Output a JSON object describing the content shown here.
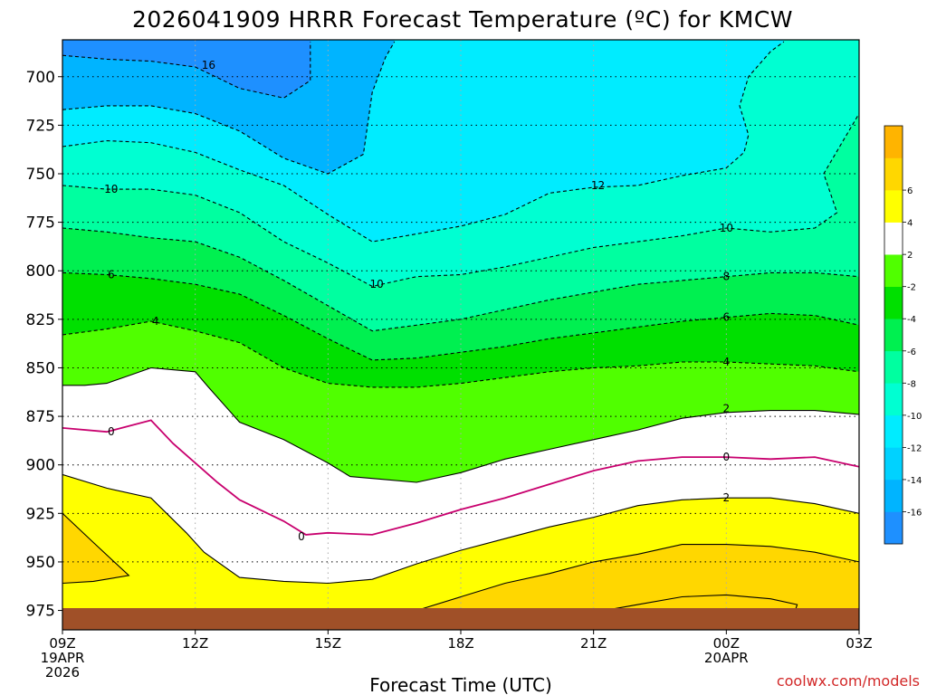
{
  "title": "2026041909 HRRR Forecast Temperature (ºC) for KMCW",
  "credit": "coolwx.com/models",
  "chart_data": {
    "type": "heatmap",
    "title": "2026041909 HRRR Forecast Temperature (ºC) for KMCW",
    "xlabel": "Forecast Time (UTC)",
    "ylabel": "",
    "x_hours": [
      0,
      18
    ],
    "y_range_hpa": [
      681,
      985
    ],
    "x_ticks": [
      {
        "h": 0,
        "label": "09Z",
        "sub1": "19APR",
        "sub2": "2026"
      },
      {
        "h": 3,
        "label": "12Z",
        "sub1": "",
        "sub2": ""
      },
      {
        "h": 6,
        "label": "15Z",
        "sub1": "",
        "sub2": ""
      },
      {
        "h": 9,
        "label": "18Z",
        "sub1": "",
        "sub2": ""
      },
      {
        "h": 12,
        "label": "21Z",
        "sub1": "",
        "sub2": ""
      },
      {
        "h": 15,
        "label": "00Z",
        "sub1": "20APR",
        "sub2": ""
      },
      {
        "h": 18,
        "label": "03Z",
        "sub1": "",
        "sub2": ""
      }
    ],
    "y_ticks": [
      700,
      725,
      750,
      775,
      800,
      825,
      850,
      875,
      900,
      925,
      950,
      975
    ],
    "grid": true,
    "colorbar": {
      "levels": [
        -18,
        -16,
        -14,
        -12,
        -10,
        -8,
        -6,
        -4,
        -2,
        2,
        4,
        6,
        8
      ],
      "colors": [
        "#1e90ff",
        "#00b4ff",
        "#00d2ff",
        "#00ecff",
        "#00ffd2",
        "#00ffa0",
        "#00f050",
        "#00e000",
        "#50ff00",
        "#ffffff",
        "#ffff00",
        "#ffd700",
        "#ffb400"
      ],
      "tick_labels": [
        "-16",
        "-14",
        "-12",
        "-10",
        "-8",
        "-6",
        "-4",
        "-2",
        "2",
        "4",
        "6"
      ]
    },
    "temperature_bands": [
      {
        "range": "< -16",
        "color": "#1e90ff"
      },
      {
        "range": "-16 to -14",
        "color": "#00b4ff"
      },
      {
        "range": "-14 to -12",
        "color": "#00ecff"
      },
      {
        "range": "-12 to -10",
        "color": "#00ffd2"
      },
      {
        "range": "-10 to -8",
        "color": "#00ffa0"
      },
      {
        "range": "-8 to -6",
        "color": "#00f050"
      },
      {
        "range": "-6 to -4",
        "color": "#00e000"
      },
      {
        "range": "-4 to -2",
        "color": "#50ff00"
      },
      {
        "range": "-2 to 2",
        "color": "#ffffff"
      },
      {
        "range": "2 to 4",
        "color": "#ffff00"
      },
      {
        "range": ">= 4",
        "color": "#ffd700"
      }
    ],
    "isotherms": [
      {
        "level": -16,
        "style": "dashed",
        "color": "#000000",
        "label_points": [
          {
            "h": 3.3,
            "p": 694
          }
        ],
        "points": [
          [
            0,
            689
          ],
          [
            1,
            691
          ],
          [
            2,
            692
          ],
          [
            3,
            695
          ],
          [
            4,
            706
          ],
          [
            5,
            711
          ],
          [
            5.6,
            702
          ],
          [
            5.6,
            682
          ]
        ]
      },
      {
        "level": -14,
        "style": "dashed",
        "color": "#000000",
        "label_points": [],
        "points": [
          [
            0,
            717
          ],
          [
            1,
            715
          ],
          [
            2,
            715
          ],
          [
            3,
            719
          ],
          [
            4,
            728
          ],
          [
            5,
            742
          ],
          [
            6,
            750
          ],
          [
            6.8,
            740
          ],
          [
            7,
            708
          ],
          [
            7.3,
            690
          ],
          [
            7.5,
            682
          ]
        ]
      },
      {
        "level": -12,
        "style": "dashed",
        "color": "#000000",
        "label_points": [
          {
            "h": 12.1,
            "p": 756
          }
        ],
        "points": [
          [
            0,
            736
          ],
          [
            1,
            733
          ],
          [
            2,
            734
          ],
          [
            3,
            739
          ],
          [
            4,
            748
          ],
          [
            5,
            756
          ],
          [
            6,
            771
          ],
          [
            7,
            785
          ],
          [
            8,
            781
          ],
          [
            9,
            777
          ],
          [
            10,
            771
          ],
          [
            11,
            760
          ],
          [
            12,
            757
          ],
          [
            13,
            756
          ],
          [
            14,
            751
          ],
          [
            15,
            747
          ],
          [
            15.4,
            739
          ],
          [
            15.5,
            730
          ],
          [
            15.3,
            715
          ],
          [
            15.5,
            700
          ],
          [
            16,
            687
          ],
          [
            16.3,
            682
          ]
        ]
      },
      {
        "level": -10,
        "style": "dashed",
        "color": "#000000",
        "label_points": [
          {
            "h": 1.1,
            "p": 758
          },
          {
            "h": 7.1,
            "p": 807
          },
          {
            "h": 15,
            "p": 778
          }
        ],
        "points": [
          [
            0,
            756
          ],
          [
            1,
            758
          ],
          [
            2,
            758
          ],
          [
            3,
            761
          ],
          [
            4,
            770
          ],
          [
            5,
            785
          ],
          [
            6,
            796
          ],
          [
            7,
            808
          ],
          [
            8,
            803
          ],
          [
            9,
            802
          ],
          [
            10,
            798
          ],
          [
            11,
            793
          ],
          [
            12,
            788
          ],
          [
            13,
            785
          ],
          [
            14,
            782
          ],
          [
            15,
            778
          ],
          [
            16,
            780
          ],
          [
            17,
            778
          ],
          [
            17.5,
            770
          ],
          [
            17.2,
            750
          ],
          [
            18,
            719
          ]
        ]
      },
      {
        "level": -8,
        "style": "dashed",
        "color": "#000000",
        "label_points": [
          {
            "h": 15,
            "p": 803
          }
        ],
        "points": [
          [
            0,
            778
          ],
          [
            1,
            780
          ],
          [
            2,
            783
          ],
          [
            3,
            785
          ],
          [
            4,
            793
          ],
          [
            5,
            805
          ],
          [
            6,
            818
          ],
          [
            7,
            831
          ],
          [
            8,
            828
          ],
          [
            9,
            825
          ],
          [
            10,
            820
          ],
          [
            11,
            815
          ],
          [
            12,
            811
          ],
          [
            13,
            807
          ],
          [
            14,
            805
          ],
          [
            15,
            803
          ],
          [
            16,
            801
          ],
          [
            17,
            801
          ],
          [
            18,
            803
          ]
        ]
      },
      {
        "level": -6,
        "style": "dashed",
        "color": "#000000",
        "label_points": [
          {
            "h": 1.1,
            "p": 802
          },
          {
            "h": 15,
            "p": 824
          }
        ],
        "points": [
          [
            0,
            801
          ],
          [
            1,
            802
          ],
          [
            2,
            804
          ],
          [
            3,
            807
          ],
          [
            4,
            812
          ],
          [
            5,
            823
          ],
          [
            6,
            835
          ],
          [
            7,
            846
          ],
          [
            8,
            845
          ],
          [
            9,
            842
          ],
          [
            10,
            839
          ],
          [
            11,
            835
          ],
          [
            12,
            832
          ],
          [
            13,
            829
          ],
          [
            14,
            826
          ],
          [
            15,
            824
          ],
          [
            16,
            822
          ],
          [
            17,
            823
          ],
          [
            18,
            828
          ]
        ]
      },
      {
        "level": -4,
        "style": "dashed",
        "color": "#000000",
        "label_points": [
          {
            "h": 2.1,
            "p": 826
          },
          {
            "h": 15,
            "p": 847
          }
        ],
        "points": [
          [
            0,
            833
          ],
          [
            1,
            830
          ],
          [
            2,
            826
          ],
          [
            3,
            831
          ],
          [
            4,
            837
          ],
          [
            5,
            850
          ],
          [
            6,
            858
          ],
          [
            7,
            860
          ],
          [
            8,
            860
          ],
          [
            9,
            858
          ],
          [
            10,
            855
          ],
          [
            11,
            852
          ],
          [
            12,
            850
          ],
          [
            13,
            849
          ],
          [
            14,
            847
          ],
          [
            15,
            847
          ],
          [
            16,
            848
          ],
          [
            17,
            849
          ],
          [
            18,
            852
          ]
        ]
      },
      {
        "level": -2,
        "style": "solid",
        "color": "#000000",
        "label_points": [
          {
            "h": 15,
            "p": 871
          }
        ],
        "points": [
          [
            0,
            859
          ],
          [
            0.5,
            859
          ],
          [
            1,
            858
          ],
          [
            2,
            850
          ],
          [
            3,
            852
          ],
          [
            3.3,
            860
          ],
          [
            4,
            878
          ],
          [
            5,
            887
          ],
          [
            6,
            899
          ],
          [
            6.5,
            906
          ],
          [
            7,
            907
          ],
          [
            8,
            909
          ],
          [
            9,
            904
          ],
          [
            10,
            897
          ],
          [
            11,
            892
          ],
          [
            12,
            887
          ],
          [
            13,
            882
          ],
          [
            14,
            876
          ],
          [
            15,
            873
          ],
          [
            16,
            872
          ],
          [
            17,
            872
          ],
          [
            18,
            874
          ]
        ]
      },
      {
        "level": 0,
        "style": "solid",
        "color": "#c8006e",
        "label_points": [
          {
            "h": 1.1,
            "p": 883
          },
          {
            "h": 5.4,
            "p": 937
          },
          {
            "h": 15,
            "p": 896
          }
        ],
        "points": [
          [
            0,
            881
          ],
          [
            1,
            883
          ],
          [
            2,
            877
          ],
          [
            2.5,
            889
          ],
          [
            3,
            899
          ],
          [
            3.5,
            909
          ],
          [
            4,
            918
          ],
          [
            5,
            929
          ],
          [
            5.5,
            936
          ],
          [
            6,
            935
          ],
          [
            7,
            936
          ],
          [
            8,
            930
          ],
          [
            9,
            923
          ],
          [
            10,
            917
          ],
          [
            11,
            910
          ],
          [
            12,
            903
          ],
          [
            13,
            898
          ],
          [
            14,
            896
          ],
          [
            15,
            896
          ],
          [
            16,
            897
          ],
          [
            17,
            896
          ],
          [
            18,
            901
          ]
        ]
      },
      {
        "level": 2,
        "style": "solid",
        "color": "#000000",
        "label_points": [
          {
            "h": 15,
            "p": 917
          }
        ],
        "points": [
          [
            0,
            905
          ],
          [
            1,
            912
          ],
          [
            2,
            917
          ],
          [
            2.8,
            935
          ],
          [
            3.2,
            945
          ],
          [
            4,
            958
          ],
          [
            5,
            960
          ],
          [
            6,
            961
          ],
          [
            7,
            959
          ],
          [
            8,
            951
          ],
          [
            9,
            944
          ],
          [
            10,
            938
          ],
          [
            11,
            932
          ],
          [
            12,
            927
          ],
          [
            13,
            921
          ],
          [
            14,
            918
          ],
          [
            15,
            917
          ],
          [
            16,
            917
          ],
          [
            17,
            920
          ],
          [
            18,
            925
          ]
        ]
      },
      {
        "level": 4,
        "style": "solid",
        "color": "#000000",
        "label_points": [],
        "points": [
          [
            0,
            925
          ],
          [
            0.7,
            940
          ],
          [
            1.5,
            957
          ],
          [
            0.7,
            960
          ],
          [
            0,
            961
          ]
        ]
      },
      {
        "level": 4,
        "style": "solid",
        "color": "#000000",
        "label_points": [],
        "points": [
          [
            7,
            981
          ],
          [
            8,
            975
          ],
          [
            9,
            968
          ],
          [
            10,
            961
          ],
          [
            11,
            956
          ],
          [
            12,
            950
          ],
          [
            13,
            946
          ],
          [
            14,
            941
          ],
          [
            15,
            941
          ],
          [
            16,
            942
          ],
          [
            17,
            945
          ],
          [
            18,
            950
          ]
        ]
      },
      {
        "level": 6,
        "style": "solid",
        "color": "#000000",
        "label_points": [],
        "points": [
          [
            10,
            981
          ],
          [
            11,
            980
          ],
          [
            12,
            976
          ],
          [
            13,
            972
          ],
          [
            14,
            968
          ],
          [
            15,
            967
          ],
          [
            16,
            969
          ],
          [
            16.6,
            972
          ],
          [
            16.5,
            979
          ],
          [
            16.2,
            982
          ]
        ]
      }
    ],
    "ground_color": "#a05028"
  }
}
